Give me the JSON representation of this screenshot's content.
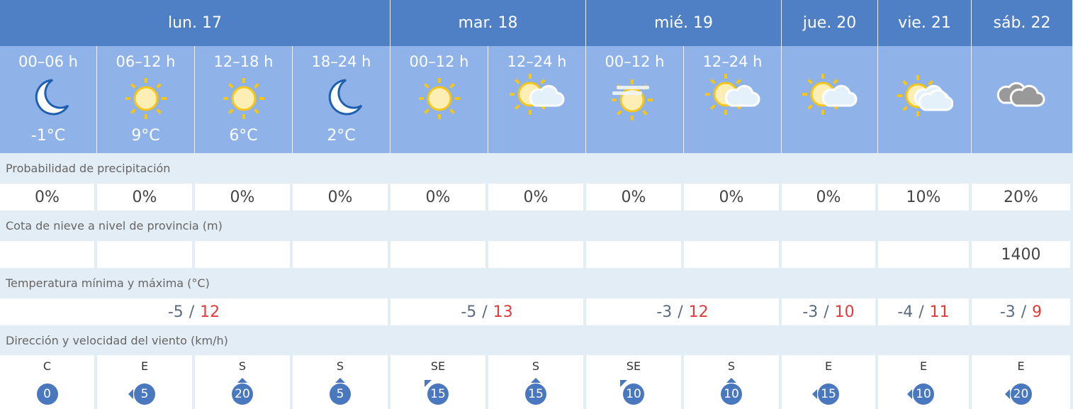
{
  "days": [
    {
      "label": "lun. 17",
      "span": 4
    },
    {
      "label": "mar. 18",
      "span": 2
    },
    {
      "label": "mié. 19",
      "span": 2
    },
    {
      "label": "jue. 20",
      "span": 1
    },
    {
      "label": "vie. 21",
      "span": 1
    },
    {
      "label": "sáb. 22",
      "span": 1
    }
  ],
  "periods": [
    {
      "label": "00–06 h",
      "icon": "moon",
      "temp": "-1°C"
    },
    {
      "label": "06–12 h",
      "icon": "sun",
      "temp": "9°C"
    },
    {
      "label": "12–18 h",
      "icon": "sun",
      "temp": "6°C"
    },
    {
      "label": "18–24 h",
      "icon": "moon",
      "temp": "2°C"
    },
    {
      "label": "00–12 h",
      "icon": "sun",
      "temp": ""
    },
    {
      "label": "12–24 h",
      "icon": "sun-cloud",
      "temp": ""
    },
    {
      "label": "00–12 h",
      "icon": "sun-fog",
      "temp": ""
    },
    {
      "label": "12–24 h",
      "icon": "sun-cloud",
      "temp": ""
    },
    {
      "label": "",
      "icon": "sun-cloud",
      "temp": ""
    },
    {
      "label": "",
      "icon": "sun-clouds",
      "temp": ""
    },
    {
      "label": "",
      "icon": "cloudy",
      "temp": ""
    }
  ],
  "precip": {
    "label": "Probabilidad de precipitación",
    "values": [
      "0%",
      "0%",
      "0%",
      "0%",
      "0%",
      "0%",
      "0%",
      "0%",
      "0%",
      "10%",
      "20%"
    ]
  },
  "snow": {
    "label": "Cota de nieve a nivel de provincia (m)",
    "values": [
      "",
      "",
      "",
      "",
      "",
      "",
      "",
      "",
      "",
      "",
      "1400"
    ]
  },
  "temps": {
    "label": "Temperatura mínima y máxima (°C)",
    "separator": "/",
    "values": [
      {
        "min": "-5",
        "max": "12"
      },
      {
        "min": "-5",
        "max": "13"
      },
      {
        "min": "-3",
        "max": "12"
      },
      {
        "min": "-3",
        "max": "10"
      },
      {
        "min": "-4",
        "max": "11"
      },
      {
        "min": "-3",
        "max": "9"
      }
    ]
  },
  "wind": {
    "label": "Dirección y velocidad del viento (km/h)",
    "values": [
      {
        "dir": "C",
        "speed": "0"
      },
      {
        "dir": "E",
        "speed": "5"
      },
      {
        "dir": "S",
        "speed": "20"
      },
      {
        "dir": "S",
        "speed": "5"
      },
      {
        "dir": "SE",
        "speed": "15"
      },
      {
        "dir": "S",
        "speed": "15"
      },
      {
        "dir": "SE",
        "speed": "10"
      },
      {
        "dir": "S",
        "speed": "10"
      },
      {
        "dir": "E",
        "speed": "15"
      },
      {
        "dir": "E",
        "speed": "10"
      },
      {
        "dir": "E",
        "speed": "20"
      }
    ]
  },
  "colors": {
    "header": "#4f7fc4",
    "periods": "#8fb3e8",
    "wind": "#4a78bf",
    "max_temp": "#e03a3a"
  }
}
